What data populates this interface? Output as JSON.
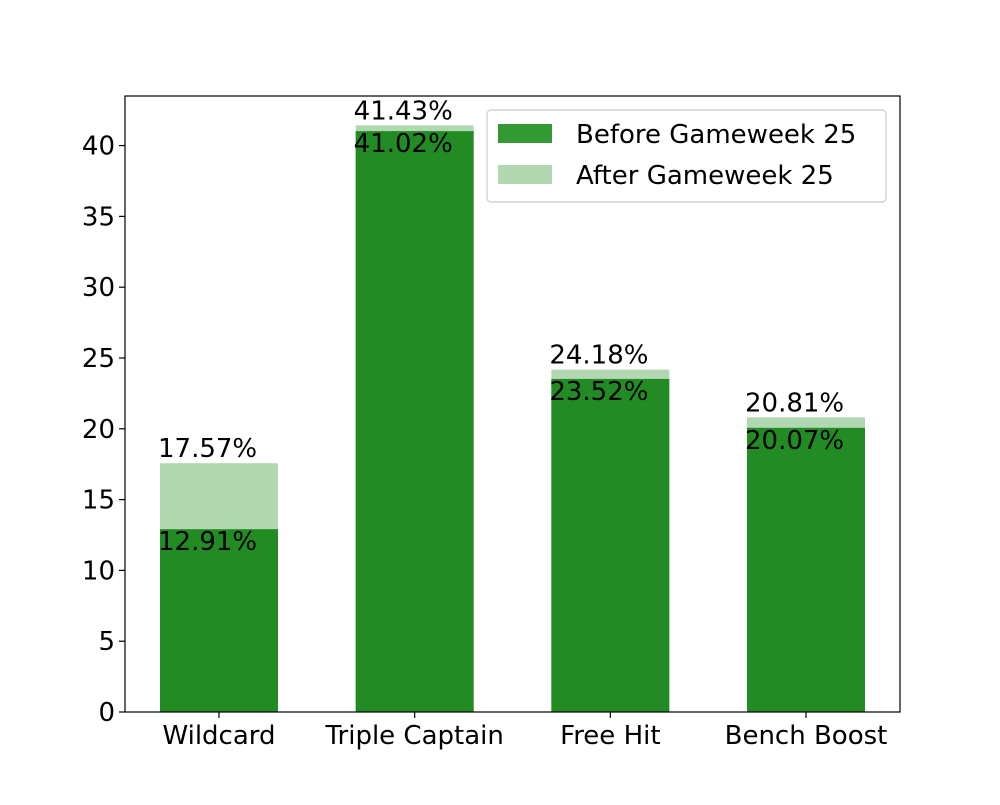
{
  "chart_data": {
    "type": "bar",
    "stacked_overlay": true,
    "categories": [
      "Wildcard",
      "Triple Captain",
      "Free Hit",
      "Bench Boost"
    ],
    "series": [
      {
        "name": "Before Gameweek 25",
        "values": [
          12.91,
          41.02,
          23.52,
          20.07
        ],
        "color": "#238b23",
        "legend_color": "#339933"
      },
      {
        "name": "After Gameweek 25",
        "values": [
          17.57,
          41.43,
          24.18,
          20.81
        ],
        "color": "#b2d8b2"
      }
    ],
    "labels": {
      "before": [
        "12.91%",
        "41.02%",
        "23.52%",
        "20.07%"
      ],
      "after": [
        "17.57%",
        "41.43%",
        "24.18%",
        "20.81%"
      ]
    },
    "y_ticks": [
      0,
      5,
      10,
      15,
      20,
      25,
      30,
      35,
      40
    ],
    "ylim": [
      0,
      43.5
    ],
    "grid": false,
    "legend_position": "top-right",
    "title": "",
    "xlabel": "",
    "ylabel": ""
  }
}
